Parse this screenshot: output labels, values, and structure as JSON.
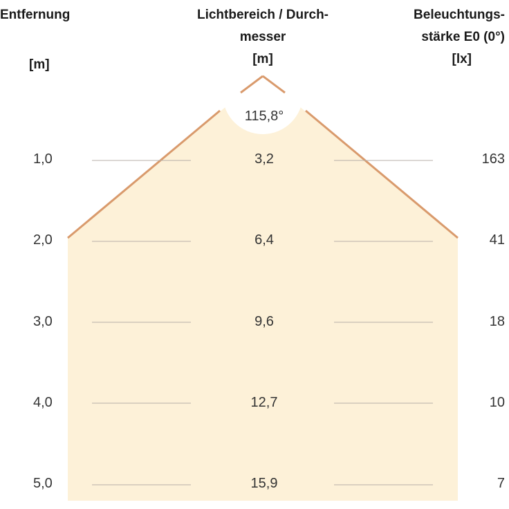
{
  "headers": {
    "distance": {
      "line1": "Entfernung",
      "unit": "[m]"
    },
    "diameter": {
      "line1": "Lichtbereich / Durch-",
      "line2": "messer",
      "unit": "[m]"
    },
    "illuminance": {
      "line1": "Beleuchtungs-",
      "line2": "stärke E0 (0°)",
      "unit": "[lx]"
    }
  },
  "beam_angle": "115,8°",
  "rows": [
    {
      "distance": "1,0",
      "diameter": "3,2",
      "illuminance": "163"
    },
    {
      "distance": "2,0",
      "diameter": "6,4",
      "illuminance": "41"
    },
    {
      "distance": "3,0",
      "diameter": "9,6",
      "illuminance": "18"
    },
    {
      "distance": "4,0",
      "diameter": "12,7",
      "illuminance": "10"
    },
    {
      "distance": "5,0",
      "diameter": "15,9",
      "illuminance": "7"
    }
  ],
  "colors": {
    "beam_fill": "#fdf1d8",
    "beam_edge": "#d99a6c",
    "guide_line": "#b8b0a8"
  }
}
